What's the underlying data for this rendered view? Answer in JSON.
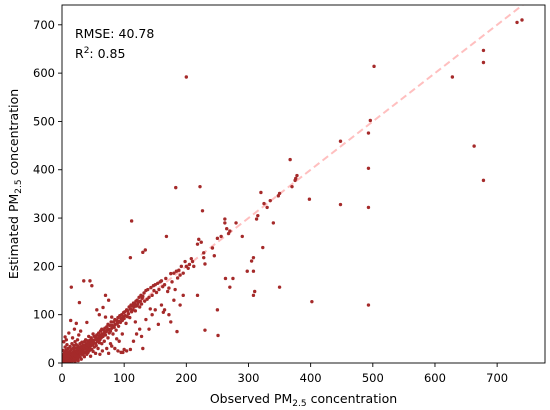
{
  "chart_data": {
    "type": "scatter",
    "xlabel": {
      "text": "Observed PM",
      "sub": "2.5",
      "suffix": " concentration"
    },
    "ylabel": {
      "text": "Estimated PM",
      "sub": "2.5",
      "suffix": " concentration"
    },
    "annotations": {
      "rmse": "RMSE: 40.78",
      "r2": {
        "base": "R",
        "sup": "2",
        "value": ": 0.85"
      }
    },
    "xlim": [
      0,
      777
    ],
    "ylim": [
      0,
      741
    ],
    "x_ticks": [
      0,
      100,
      200,
      300,
      400,
      500,
      600,
      700
    ],
    "y_ticks": [
      0,
      100,
      200,
      300,
      400,
      500,
      600,
      700
    ],
    "grid": false,
    "point_color": "#a52a2a",
    "reference_line": {
      "slope": 1,
      "intercept": 0,
      "style": "dashed",
      "color": "#ffbfbf"
    },
    "points": [
      [
        1,
        2
      ],
      [
        1,
        9
      ],
      [
        2,
        5
      ],
      [
        2,
        14
      ],
      [
        2,
        26
      ],
      [
        3,
        1
      ],
      [
        3,
        7
      ],
      [
        3,
        18
      ],
      [
        3,
        44
      ],
      [
        4,
        3
      ],
      [
        4,
        11
      ],
      [
        4,
        22
      ],
      [
        5,
        6
      ],
      [
        5,
        15
      ],
      [
        5,
        33
      ],
      [
        5,
        54
      ],
      [
        6,
        2
      ],
      [
        6,
        9
      ],
      [
        6,
        19
      ],
      [
        7,
        4
      ],
      [
        7,
        12
      ],
      [
        7,
        27
      ],
      [
        7,
        48
      ],
      [
        8,
        7
      ],
      [
        8,
        16
      ],
      [
        8,
        38
      ],
      [
        9,
        3
      ],
      [
        9,
        11
      ],
      [
        9,
        22
      ],
      [
        10,
        8
      ],
      [
        10,
        14
      ],
      [
        10,
        30
      ],
      [
        11,
        5
      ],
      [
        11,
        19
      ],
      [
        11,
        62
      ],
      [
        12,
        2
      ],
      [
        12,
        10
      ],
      [
        12,
        24
      ],
      [
        13,
        15
      ],
      [
        13,
        34
      ],
      [
        14,
        7
      ],
      [
        14,
        20
      ],
      [
        14,
        88
      ],
      [
        15,
        12
      ],
      [
        15,
        28
      ],
      [
        15,
        157
      ],
      [
        16,
        4
      ],
      [
        16,
        17
      ],
      [
        16,
        40
      ],
      [
        17,
        9
      ],
      [
        17,
        22
      ],
      [
        17,
        52
      ],
      [
        18,
        6
      ],
      [
        18,
        14
      ],
      [
        18,
        30
      ],
      [
        19,
        19
      ],
      [
        19,
        36
      ],
      [
        20,
        11
      ],
      [
        20,
        25
      ],
      [
        20,
        70
      ],
      [
        21,
        3
      ],
      [
        21,
        16
      ],
      [
        21,
        44
      ],
      [
        22,
        8
      ],
      [
        22,
        21
      ],
      [
        22,
        31
      ],
      [
        23,
        14
      ],
      [
        23,
        38
      ],
      [
        23,
        82
      ],
      [
        24,
        18
      ],
      [
        24,
        24
      ],
      [
        25,
        10
      ],
      [
        25,
        29
      ],
      [
        25,
        48
      ],
      [
        26,
        5
      ],
      [
        26,
        20
      ],
      [
        26,
        35
      ],
      [
        27,
        15
      ],
      [
        27,
        26
      ],
      [
        27,
        58
      ],
      [
        28,
        22
      ],
      [
        28,
        31
      ],
      [
        28,
        125
      ],
      [
        29,
        12
      ],
      [
        29,
        40
      ],
      [
        30,
        19
      ],
      [
        30,
        27
      ],
      [
        30,
        66
      ],
      [
        31,
        8
      ],
      [
        31,
        34
      ],
      [
        32,
        24
      ],
      [
        32,
        43
      ],
      [
        33,
        17
      ],
      [
        33,
        30
      ],
      [
        34,
        26
      ],
      [
        34,
        37
      ],
      [
        35,
        20
      ],
      [
        35,
        32
      ],
      [
        35,
        170
      ],
      [
        36,
        13
      ],
      [
        36,
        44
      ],
      [
        37,
        29
      ],
      [
        37,
        36
      ],
      [
        38,
        22
      ],
      [
        38,
        48
      ],
      [
        39,
        33
      ],
      [
        39,
        40
      ],
      [
        40,
        18
      ],
      [
        40,
        27
      ],
      [
        40,
        84
      ],
      [
        41,
        37
      ],
      [
        41,
        46
      ],
      [
        42,
        22
      ],
      [
        42,
        31
      ],
      [
        43,
        42
      ],
      [
        43,
        55
      ],
      [
        44,
        26
      ],
      [
        44,
        35
      ],
      [
        45,
        30
      ],
      [
        45,
        47
      ],
      [
        45,
        170
      ],
      [
        46,
        14
      ],
      [
        46,
        40
      ],
      [
        47,
        36
      ],
      [
        47,
        52
      ],
      [
        48,
        28
      ],
      [
        48,
        44
      ],
      [
        48,
        160
      ],
      [
        49,
        38
      ],
      [
        50,
        24
      ],
      [
        50,
        47
      ],
      [
        50,
        60
      ],
      [
        51,
        42
      ],
      [
        52,
        33
      ],
      [
        52,
        55
      ],
      [
        53,
        48
      ],
      [
        54,
        20
      ],
      [
        54,
        40
      ],
      [
        55,
        36
      ],
      [
        55,
        52
      ],
      [
        56,
        58
      ],
      [
        56,
        110
      ],
      [
        57,
        45
      ],
      [
        58,
        30
      ],
      [
        58,
        50
      ],
      [
        59,
        62
      ],
      [
        60,
        42
      ],
      [
        60,
        55
      ],
      [
        60,
        100
      ],
      [
        61,
        18
      ],
      [
        61,
        48
      ],
      [
        62,
        58
      ],
      [
        62,
        66
      ],
      [
        63,
        52
      ],
      [
        64,
        40
      ],
      [
        64,
        70
      ],
      [
        65,
        25
      ],
      [
        65,
        60
      ],
      [
        66,
        55
      ],
      [
        66,
        115
      ],
      [
        67,
        68
      ],
      [
        68,
        45
      ],
      [
        68,
        62
      ],
      [
        69,
        72
      ],
      [
        70,
        58
      ],
      [
        70,
        95
      ],
      [
        70,
        140
      ],
      [
        71,
        65
      ],
      [
        72,
        30
      ],
      [
        72,
        75
      ],
      [
        73,
        68
      ],
      [
        74,
        52
      ],
      [
        74,
        80
      ],
      [
        75,
        20
      ],
      [
        75,
        70
      ],
      [
        75,
        130
      ],
      [
        76,
        62
      ],
      [
        77,
        78
      ],
      [
        78,
        40
      ],
      [
        78,
        66
      ],
      [
        79,
        85
      ],
      [
        80,
        35
      ],
      [
        80,
        72
      ],
      [
        80,
        95
      ],
      [
        81,
        78
      ],
      [
        82,
        60
      ],
      [
        83,
        85
      ],
      [
        84,
        74
      ],
      [
        85,
        30
      ],
      [
        85,
        90
      ],
      [
        86,
        80
      ],
      [
        87,
        68
      ],
      [
        88,
        50
      ],
      [
        88,
        88
      ],
      [
        89,
        82
      ],
      [
        90,
        25
      ],
      [
        90,
        94
      ],
      [
        91,
        76
      ],
      [
        92,
        45
      ],
      [
        92,
        86
      ],
      [
        93,
        98
      ],
      [
        94,
        84
      ],
      [
        95,
        22
      ],
      [
        95,
        92
      ],
      [
        96,
        100
      ],
      [
        97,
        60
      ],
      [
        97,
        88
      ],
      [
        98,
        22
      ],
      [
        98,
        96
      ],
      [
        99,
        104
      ],
      [
        100,
        28
      ],
      [
        100,
        92
      ],
      [
        101,
        106
      ],
      [
        102,
        98
      ],
      [
        103,
        82
      ],
      [
        104,
        25
      ],
      [
        104,
        110
      ],
      [
        105,
        96
      ],
      [
        106,
        108
      ],
      [
        107,
        102
      ],
      [
        108,
        116
      ],
      [
        109,
        94
      ],
      [
        110,
        28
      ],
      [
        110,
        112
      ],
      [
        110,
        218
      ],
      [
        111,
        120
      ],
      [
        112,
        106
      ],
      [
        112,
        294
      ],
      [
        113,
        118
      ],
      [
        114,
        110
      ],
      [
        115,
        45
      ],
      [
        115,
        124
      ],
      [
        116,
        116
      ],
      [
        117,
        122
      ],
      [
        118,
        85
      ],
      [
        118,
        108
      ],
      [
        119,
        128
      ],
      [
        120,
        60
      ],
      [
        120,
        118
      ],
      [
        121,
        130
      ],
      [
        122,
        122
      ],
      [
        123,
        126
      ],
      [
        124,
        136
      ],
      [
        125,
        70
      ],
      [
        125,
        116
      ],
      [
        126,
        128
      ],
      [
        127,
        140
      ],
      [
        128,
        55
      ],
      [
        128,
        122
      ],
      [
        129,
        134
      ],
      [
        130,
        30
      ],
      [
        130,
        138
      ],
      [
        130,
        229
      ],
      [
        132,
        145
      ],
      [
        133,
        128
      ],
      [
        134,
        234
      ],
      [
        135,
        90
      ],
      [
        135,
        150
      ],
      [
        137,
        132
      ],
      [
        138,
        152
      ],
      [
        140,
        70
      ],
      [
        140,
        136
      ],
      [
        142,
        112
      ],
      [
        143,
        156
      ],
      [
        145,
        100
      ],
      [
        145,
        140
      ],
      [
        147,
        160
      ],
      [
        148,
        150
      ],
      [
        150,
        110
      ],
      [
        150,
        162
      ],
      [
        152,
        146
      ],
      [
        154,
        165
      ],
      [
        155,
        80
      ],
      [
        156,
        152
      ],
      [
        158,
        168
      ],
      [
        160,
        120
      ],
      [
        160,
        170
      ],
      [
        162,
        158
      ],
      [
        163,
        105
      ],
      [
        165,
        110
      ],
      [
        165,
        162
      ],
      [
        167,
        175
      ],
      [
        168,
        262
      ],
      [
        170,
        148
      ],
      [
        172,
        100
      ],
      [
        172,
        155
      ],
      [
        175,
        85
      ],
      [
        175,
        185
      ],
      [
        177,
        168
      ],
      [
        180,
        130
      ],
      [
        180,
        186
      ],
      [
        182,
        152
      ],
      [
        183,
        363
      ],
      [
        184,
        190
      ],
      [
        185,
        65
      ],
      [
        186,
        176
      ],
      [
        188,
        192
      ],
      [
        190,
        120
      ],
      [
        190,
        182
      ],
      [
        192,
        200
      ],
      [
        195,
        140
      ],
      [
        195,
        186
      ],
      [
        198,
        210
      ],
      [
        200,
        200
      ],
      [
        200,
        592
      ],
      [
        203,
        196
      ],
      [
        205,
        204
      ],
      [
        208,
        216
      ],
      [
        210,
        210
      ],
      [
        212,
        200
      ],
      [
        218,
        140
      ],
      [
        218,
        246
      ],
      [
        220,
        256
      ],
      [
        222,
        365
      ],
      [
        224,
        250
      ],
      [
        226,
        315
      ],
      [
        228,
        218
      ],
      [
        228,
        228
      ],
      [
        230,
        68
      ],
      [
        230,
        205
      ],
      [
        242,
        238
      ],
      [
        245,
        222
      ],
      [
        250,
        110
      ],
      [
        250,
        258
      ],
      [
        251,
        57
      ],
      [
        256,
        262
      ],
      [
        262,
        290
      ],
      [
        262,
        298
      ],
      [
        263,
        175
      ],
      [
        265,
        278
      ],
      [
        268,
        268
      ],
      [
        270,
        157
      ],
      [
        270,
        273
      ],
      [
        275,
        175
      ],
      [
        280,
        290
      ],
      [
        290,
        262
      ],
      [
        298,
        190
      ],
      [
        305,
        211
      ],
      [
        308,
        140
      ],
      [
        308,
        190
      ],
      [
        308,
        218
      ],
      [
        310,
        148
      ],
      [
        313,
        298
      ],
      [
        315,
        305
      ],
      [
        320,
        353
      ],
      [
        323,
        239
      ],
      [
        325,
        330
      ],
      [
        330,
        322
      ],
      [
        335,
        336
      ],
      [
        340,
        290
      ],
      [
        348,
        346
      ],
      [
        350,
        157
      ],
      [
        350,
        351
      ],
      [
        367,
        421
      ],
      [
        370,
        365
      ],
      [
        375,
        378
      ],
      [
        376,
        382
      ],
      [
        378,
        388
      ],
      [
        398,
        339
      ],
      [
        402,
        127
      ],
      [
        448,
        328
      ],
      [
        448,
        459
      ],
      [
        493,
        120
      ],
      [
        493,
        322
      ],
      [
        493,
        403
      ],
      [
        493,
        476
      ],
      [
        496,
        502
      ],
      [
        502,
        614
      ],
      [
        628,
        592
      ],
      [
        663,
        449
      ],
      [
        678,
        378
      ],
      [
        678,
        622
      ],
      [
        678,
        647
      ],
      [
        732,
        705
      ],
      [
        740,
        710
      ]
    ]
  }
}
